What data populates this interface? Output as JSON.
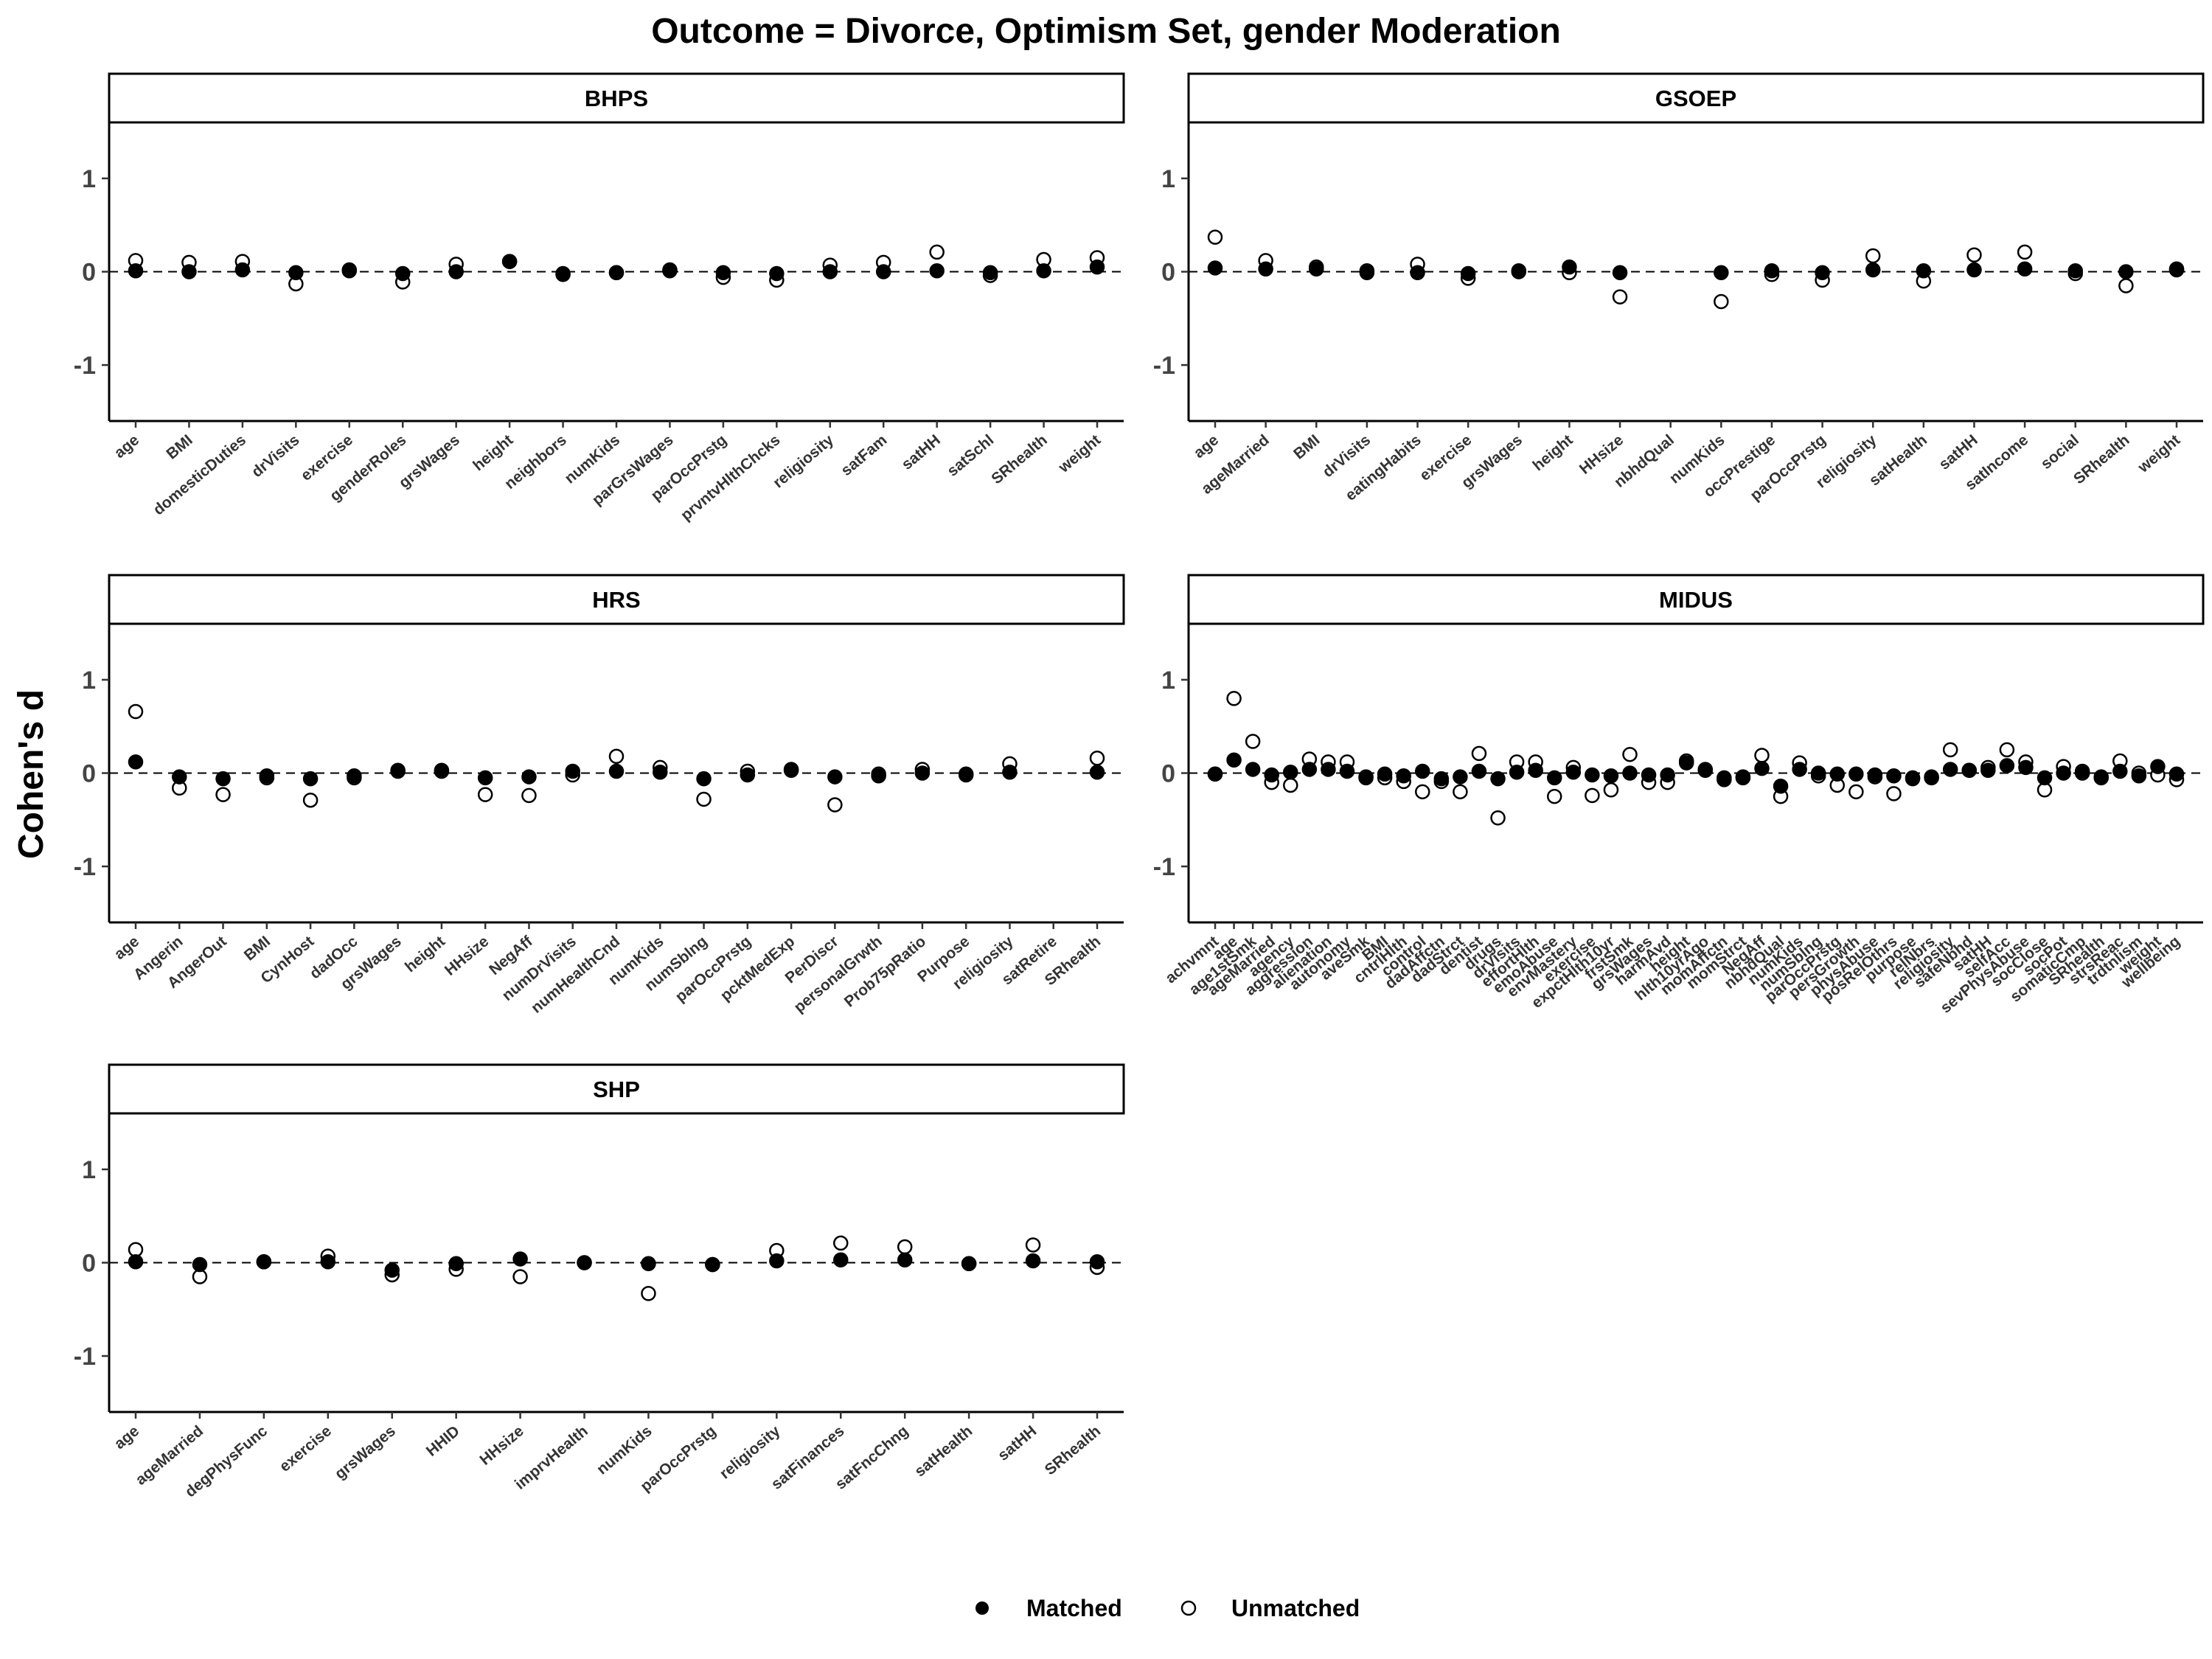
{
  "chart_data": {
    "type": "scatter",
    "title": "Outcome = Divorce, Optimism Set, gender Moderation",
    "ylabel": "Cohen's d",
    "xlabel": "",
    "ylim": [
      -1.6,
      1.6
    ],
    "yticks": [
      -1,
      0,
      1
    ],
    "reference_line": 0,
    "grid": false,
    "legend": {
      "position": "bottom",
      "entries": [
        {
          "name": "Matched",
          "marker": "filled-circle"
        },
        {
          "name": "Unmatched",
          "marker": "open-circle"
        }
      ]
    },
    "colors": {
      "marker": "#000000",
      "axis": "#000000",
      "tick_label": "#333333"
    },
    "panels": [
      {
        "name": "BHPS",
        "categories": [
          "age",
          "BMI",
          "domesticDuties",
          "drVisits",
          "exercise",
          "genderRoles",
          "grsWages",
          "height",
          "neighbors",
          "numKids",
          "parGrsWages",
          "parOccPrstg",
          "prvntvHlthChcks",
          "religiosity",
          "satFam",
          "satHH",
          "satSchl",
          "SRhealth",
          "weight"
        ],
        "series": [
          {
            "name": "Matched",
            "values": [
              0.01,
              0.0,
              0.02,
              -0.01,
              0.01,
              -0.02,
              0.0,
              0.11,
              -0.02,
              -0.01,
              0.01,
              -0.01,
              -0.02,
              0.0,
              0.0,
              0.01,
              -0.01,
              0.01,
              0.05
            ]
          },
          {
            "name": "Unmatched",
            "values": [
              0.12,
              0.1,
              0.11,
              -0.13,
              0.02,
              -0.11,
              0.08,
              0.11,
              -0.03,
              -0.01,
              0.02,
              -0.06,
              -0.09,
              0.07,
              0.1,
              0.21,
              -0.04,
              0.13,
              0.15
            ]
          }
        ]
      },
      {
        "name": "GSOEP",
        "categories": [
          "age",
          "ageMarried",
          "BMI",
          "drVisits",
          "eatingHabits",
          "exercise",
          "grsWages",
          "height",
          "HHsize",
          "nbhdQual",
          "numKids",
          "occPrestige",
          "parOccPrstg",
          "religiosity",
          "satHealth",
          "satHH",
          "satIncome",
          "social",
          "SRhealth",
          "weight"
        ],
        "series": [
          {
            "name": "Matched",
            "values": [
              0.04,
              0.03,
              0.03,
              -0.01,
              -0.01,
              -0.02,
              0.0,
              0.05,
              -0.01,
              null,
              -0.01,
              0.01,
              -0.01,
              0.02,
              0.01,
              0.02,
              0.03,
              0.01,
              0.0,
              0.03
            ]
          },
          {
            "name": "Unmatched",
            "values": [
              0.37,
              0.12,
              0.05,
              0.01,
              0.08,
              -0.07,
              0.01,
              -0.01,
              -0.27,
              null,
              -0.32,
              -0.03,
              -0.09,
              0.17,
              -0.1,
              0.18,
              0.21,
              -0.02,
              -0.15,
              0.02
            ]
          }
        ]
      },
      {
        "name": "HRS",
        "categories": [
          "age",
          "Angerin",
          "AngerOut",
          "BMI",
          "CynHost",
          "dadOcc",
          "grsWages",
          "height",
          "HHsize",
          "NegAff",
          "numDrVisits",
          "numHealthCnd",
          "numKids",
          "numSblng",
          "parOccPrstg",
          "pcktMedExp",
          "PerDiscr",
          "personalGrwth",
          "Prob75pRatio",
          "Purpose",
          "religiosity",
          "satRetire",
          "SRhealth"
        ],
        "series": [
          {
            "name": "Matched",
            "values": [
              0.12,
              -0.04,
              -0.06,
              -0.03,
              -0.06,
              -0.03,
              0.03,
              0.03,
              -0.05,
              -0.04,
              0.02,
              0.02,
              0.01,
              -0.06,
              -0.02,
              0.04,
              -0.04,
              -0.03,
              0.0,
              -0.02,
              0.01,
              null,
              0.01
            ]
          },
          {
            "name": "Unmatched",
            "values": [
              0.66,
              -0.16,
              -0.23,
              -0.05,
              -0.29,
              -0.05,
              0.02,
              0.02,
              -0.23,
              -0.24,
              -0.02,
              0.18,
              0.06,
              -0.28,
              0.02,
              0.03,
              -0.34,
              -0.01,
              0.04,
              -0.01,
              0.1,
              null,
              0.16
            ]
          }
        ]
      },
      {
        "name": "MIDUS",
        "categories": [
          "achvmnt",
          "age",
          "age1stSmk",
          "ageMarried",
          "agency",
          "aggression",
          "alienation",
          "autonomy",
          "aveSmk",
          "BMI",
          "cntrlHlth",
          "control",
          "dadAffctn",
          "dadStrct",
          "dentist",
          "drugs",
          "drVisits",
          "effortHlth",
          "emoAbuse",
          "envMastery",
          "exercise",
          "expctHlth10yr",
          "frstSmk",
          "grsWages",
          "harmAvd",
          "height",
          "hlth10yrAgo",
          "momAffctn",
          "momStrct",
          "NegAff",
          "nbhdQual",
          "numKids",
          "numSblng",
          "parOccPrstg",
          "persGrowth",
          "physAbuse",
          "posRelOthrs",
          "purpose",
          "relNbrs",
          "religiosity",
          "safeNbhd",
          "satHH",
          "selfAcc",
          "sevPhysAbuse",
          "socClose",
          "socPot",
          "somaticCmp",
          "SRhealth",
          "strsReac",
          "trdtnlism",
          "weight",
          "wellbeing"
        ],
        "series": [
          {
            "name": "Matched",
            "values": [
              -0.01,
              0.14,
              0.04,
              -0.02,
              0.01,
              0.04,
              0.04,
              0.02,
              -0.04,
              -0.01,
              -0.03,
              0.02,
              -0.06,
              -0.04,
              0.02,
              -0.06,
              0.01,
              0.03,
              -0.05,
              0.01,
              -0.02,
              -0.03,
              0.0,
              -0.02,
              -0.02,
              0.11,
              0.03,
              -0.05,
              -0.04,
              0.05,
              -0.14,
              0.04,
              0.0,
              -0.01,
              -0.01,
              -0.02,
              -0.03,
              -0.06,
              -0.05,
              0.04,
              0.03,
              0.03,
              0.08,
              0.06,
              -0.05,
              0.0,
              0.02,
              -0.05,
              0.02,
              -0.03,
              0.07,
              -0.01
            ]
          },
          {
            "name": "Unmatched",
            "values": [
              -0.01,
              0.8,
              0.34,
              -0.1,
              -0.13,
              0.15,
              0.12,
              0.12,
              -0.05,
              -0.05,
              -0.09,
              -0.2,
              -0.09,
              -0.2,
              0.21,
              -0.48,
              0.12,
              0.12,
              -0.25,
              0.06,
              -0.24,
              -0.18,
              0.2,
              -0.1,
              -0.1,
              0.13,
              0.04,
              -0.07,
              -0.05,
              0.19,
              -0.25,
              0.11,
              -0.03,
              -0.13,
              -0.2,
              -0.04,
              -0.22,
              -0.05,
              -0.04,
              0.25,
              0.03,
              0.06,
              0.25,
              0.12,
              -0.18,
              0.07,
              0.0,
              -0.04,
              0.13,
              0.0,
              -0.02,
              -0.07
            ]
          }
        ]
      },
      {
        "name": "SHP",
        "categories": [
          "age",
          "ageMarried",
          "degPhysFunc",
          "exercise",
          "grsWages",
          "HHID",
          "HHsize",
          "imprvHealth",
          "numKids",
          "parOccPrstg",
          "religiosity",
          "satFinances",
          "satFncChng",
          "satHealth",
          "satHH",
          "SRhealth"
        ],
        "series": [
          {
            "name": "Matched",
            "values": [
              0.01,
              -0.02,
              0.01,
              0.01,
              -0.08,
              -0.01,
              0.04,
              0.0,
              -0.01,
              -0.02,
              0.02,
              0.03,
              0.03,
              -0.01,
              0.02,
              0.01
            ]
          },
          {
            "name": "Unmatched",
            "values": [
              0.14,
              -0.15,
              0.01,
              0.07,
              -0.13,
              -0.07,
              -0.15,
              0.0,
              -0.33,
              -0.02,
              0.13,
              0.21,
              0.17,
              -0.01,
              0.19,
              -0.05
            ]
          }
        ]
      }
    ]
  }
}
